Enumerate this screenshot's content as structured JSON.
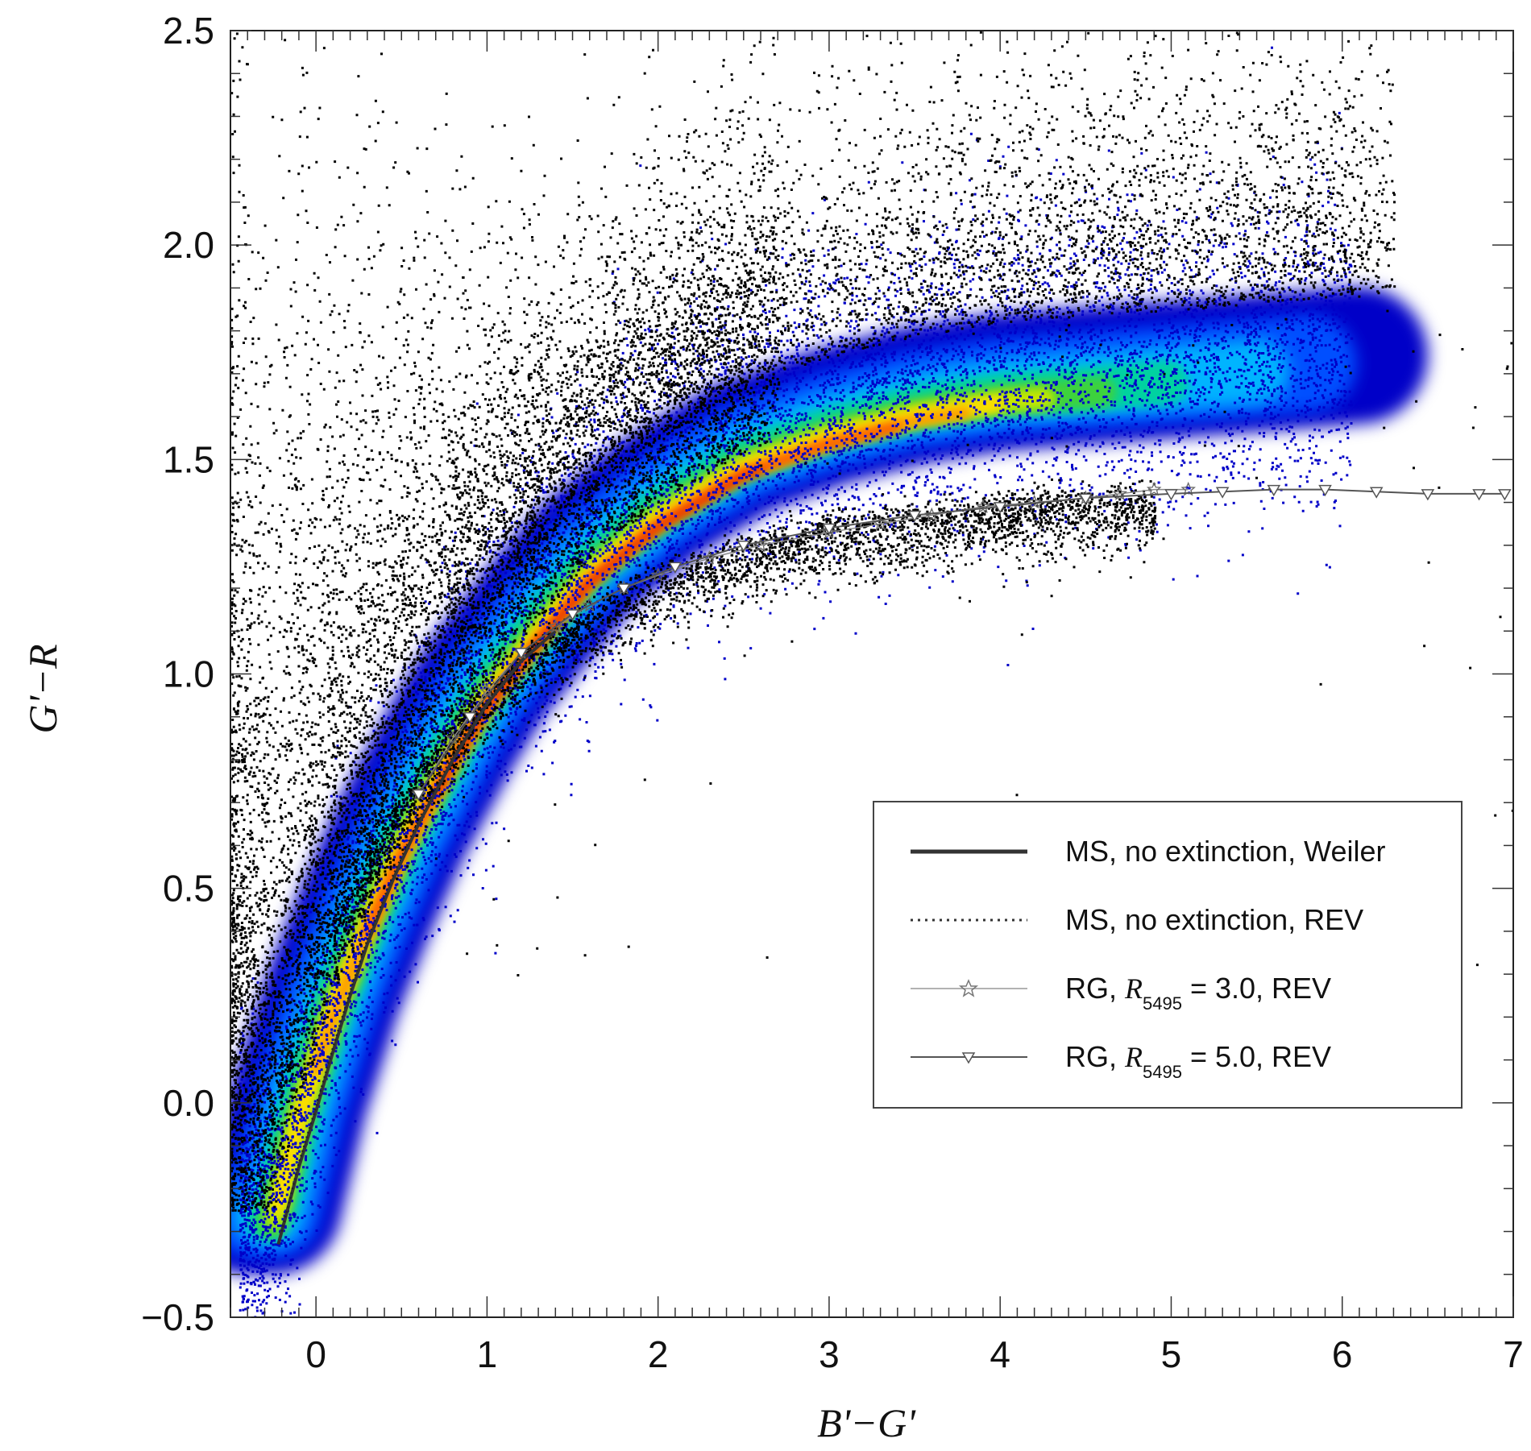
{
  "chart_data": {
    "type": "scatter",
    "title": "",
    "xlabel": "B'−G'",
    "ylabel": "G'−R",
    "xlim": [
      -0.5,
      7
    ],
    "ylim": [
      -0.5,
      2.5
    ],
    "x_ticks": [
      0,
      1,
      2,
      3,
      4,
      5,
      6,
      7
    ],
    "x_tick_labels": [
      "0",
      "1",
      "2",
      "3",
      "4",
      "5",
      "6",
      "7"
    ],
    "y_ticks": [
      -0.5,
      0.0,
      0.5,
      1.0,
      1.5,
      2.0,
      2.5
    ],
    "y_tick_labels": [
      "−0.5",
      "0.0",
      "0.5",
      "1.0",
      "1.5",
      "2.0",
      "2.5"
    ],
    "grid": false,
    "legend_position": "lower-right",
    "density_colormap": [
      "#000000",
      "#0000c8",
      "#0050ff",
      "#00b4ff",
      "#00d2a0",
      "#3cd23c",
      "#c8e600",
      "#ffdc00",
      "#ff8c00",
      "#ff3000",
      "#d20000"
    ],
    "density_core": {
      "x": [
        -0.25,
        -0.1,
        0.1,
        0.3,
        0.5,
        0.8,
        1.0,
        1.3,
        1.6,
        2.0,
        2.5,
        3.0,
        3.5,
        4.0
      ],
      "y": [
        -0.3,
        -0.05,
        0.2,
        0.4,
        0.58,
        0.8,
        0.93,
        1.08,
        1.22,
        1.35,
        1.47,
        1.54,
        1.59,
        1.62
      ]
    },
    "series": [
      {
        "name": "MS, no extinction, Weiler",
        "style": "solid-thick",
        "x": [
          -0.22,
          -0.1,
          0.0,
          0.1,
          0.2,
          0.3,
          0.45,
          0.6,
          0.8,
          1.0,
          1.2,
          1.4
        ],
        "y": [
          -0.33,
          -0.15,
          -0.02,
          0.12,
          0.25,
          0.37,
          0.52,
          0.65,
          0.8,
          0.93,
          1.03,
          1.1
        ]
      },
      {
        "name": "MS, no extinction, REV",
        "style": "dotted",
        "x": [
          -0.2,
          -0.1,
          0.0,
          0.1,
          0.2,
          0.3,
          0.45,
          0.6,
          0.8,
          1.0,
          1.2,
          1.4
        ],
        "y": [
          -0.3,
          -0.14,
          -0.01,
          0.13,
          0.26,
          0.38,
          0.53,
          0.66,
          0.81,
          0.94,
          1.04,
          1.11
        ]
      },
      {
        "name": "RG, R5495 = 3.0, REV",
        "style": "thin-star",
        "x": [
          0.6,
          0.8,
          1.0,
          1.2,
          1.4,
          1.6,
          1.8,
          2.0,
          2.3,
          2.6,
          3.0,
          3.3,
          3.6,
          3.9,
          4.2,
          4.5,
          4.7,
          4.9,
          5.1
        ],
        "y": [
          0.72,
          0.85,
          0.96,
          1.05,
          1.11,
          1.16,
          1.2,
          1.23,
          1.27,
          1.3,
          1.33,
          1.35,
          1.37,
          1.39,
          1.4,
          1.41,
          1.42,
          1.43,
          1.43
        ]
      },
      {
        "name": "RG, R5495 = 5.0, REV",
        "style": "thin-triangle",
        "x": [
          0.6,
          0.9,
          1.2,
          1.5,
          1.8,
          2.1,
          2.5,
          3.0,
          3.5,
          4.0,
          4.5,
          5.0,
          5.3,
          5.6,
          5.9,
          6.2,
          6.5,
          6.8,
          6.95
        ],
        "y": [
          0.72,
          0.9,
          1.05,
          1.14,
          1.2,
          1.25,
          1.3,
          1.34,
          1.37,
          1.39,
          1.41,
          1.42,
          1.425,
          1.43,
          1.43,
          1.425,
          1.42,
          1.42,
          1.42
        ]
      }
    ]
  },
  "legend": {
    "items": [
      {
        "text": "MS, no extinction, Weiler"
      },
      {
        "text": "MS, no extinction, REV"
      },
      {
        "pre": "RG, ",
        "r": "R",
        "sub": "5495",
        "post": " = 3.0, REV"
      },
      {
        "pre": "RG, ",
        "r": "R",
        "sub": "5495",
        "post": " = 5.0, REV"
      }
    ]
  }
}
